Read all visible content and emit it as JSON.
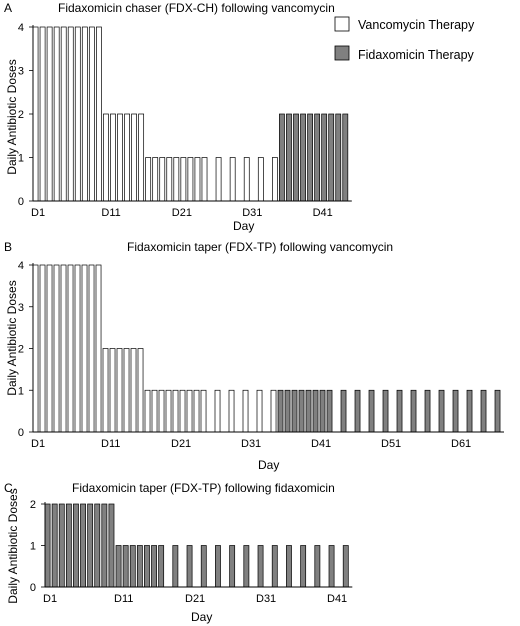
{
  "legend": [
    {
      "label": "Vancomycin Therapy",
      "color": "#ffffff"
    },
    {
      "label": "Fidaxomicin Therapy",
      "color": "#808080"
    }
  ],
  "colors": {
    "vancomycin": "#ffffff",
    "fidaxomicin": "#808080",
    "outline": "#000000"
  },
  "chart_data": [
    {
      "panel": "A",
      "type": "bar",
      "title": "Fidaxomicin chaser (FDX-CH)  following vancomycin",
      "xlabel": "Day",
      "ylabel": "Daily Antibiotic Doses",
      "ylim": [
        0,
        4
      ],
      "yticks": [
        "0",
        "1",
        "2",
        "3",
        "4"
      ],
      "xticks": [
        {
          "label": "D1",
          "day": 1
        },
        {
          "label": "D11",
          "day": 11
        },
        {
          "label": "D21",
          "day": 21
        },
        {
          "label": "D31",
          "day": 31
        },
        {
          "label": "D41",
          "day": 41
        }
      ],
      "series": [
        {
          "name": "Vancomycin Therapy",
          "points": [
            [
              1,
              4
            ],
            [
              2,
              4
            ],
            [
              3,
              4
            ],
            [
              4,
              4
            ],
            [
              5,
              4
            ],
            [
              6,
              4
            ],
            [
              7,
              4
            ],
            [
              8,
              4
            ],
            [
              9,
              4
            ],
            [
              10,
              4
            ],
            [
              11,
              2
            ],
            [
              12,
              2
            ],
            [
              13,
              2
            ],
            [
              14,
              2
            ],
            [
              15,
              2
            ],
            [
              16,
              2
            ],
            [
              17,
              1
            ],
            [
              18,
              1
            ],
            [
              19,
              1
            ],
            [
              20,
              1
            ],
            [
              21,
              1
            ],
            [
              22,
              1
            ],
            [
              23,
              1
            ],
            [
              24,
              1
            ],
            [
              25,
              1
            ],
            [
              27,
              1
            ],
            [
              29,
              1
            ],
            [
              31,
              1
            ],
            [
              33,
              1
            ],
            [
              35,
              1
            ]
          ]
        },
        {
          "name": "Fidaxomicin Therapy",
          "points": [
            [
              36,
              2
            ],
            [
              37,
              2
            ],
            [
              38,
              2
            ],
            [
              39,
              2
            ],
            [
              40,
              2
            ],
            [
              41,
              2
            ],
            [
              42,
              2
            ],
            [
              43,
              2
            ],
            [
              44,
              2
            ],
            [
              45,
              2
            ]
          ]
        }
      ]
    },
    {
      "panel": "B",
      "type": "bar",
      "title": "Fidaxomicin taper (FDX-TP) following vancomycin",
      "xlabel": "Day",
      "ylabel": "Daily Antibiotic Doses",
      "ylim": [
        0,
        4
      ],
      "yticks": [
        "0",
        "1",
        "2",
        "3",
        "4"
      ],
      "xticks": [
        {
          "label": "D1",
          "day": 1
        },
        {
          "label": "D11",
          "day": 11
        },
        {
          "label": "D21",
          "day": 21
        },
        {
          "label": "D31",
          "day": 31
        },
        {
          "label": "D41",
          "day": 41
        },
        {
          "label": "D51",
          "day": 51
        },
        {
          "label": "D61",
          "day": 61
        }
      ],
      "series": [
        {
          "name": "Vancomycin Therapy",
          "points": [
            [
              1,
              4
            ],
            [
              2,
              4
            ],
            [
              3,
              4
            ],
            [
              4,
              4
            ],
            [
              5,
              4
            ],
            [
              6,
              4
            ],
            [
              7,
              4
            ],
            [
              8,
              4
            ],
            [
              9,
              4
            ],
            [
              10,
              4
            ],
            [
              11,
              2
            ],
            [
              12,
              2
            ],
            [
              13,
              2
            ],
            [
              14,
              2
            ],
            [
              15,
              2
            ],
            [
              16,
              2
            ],
            [
              17,
              1
            ],
            [
              18,
              1
            ],
            [
              19,
              1
            ],
            [
              20,
              1
            ],
            [
              21,
              1
            ],
            [
              22,
              1
            ],
            [
              23,
              1
            ],
            [
              24,
              1
            ],
            [
              25,
              1
            ],
            [
              27,
              1
            ],
            [
              29,
              1
            ],
            [
              31,
              1
            ],
            [
              33,
              1
            ],
            [
              35,
              1
            ]
          ]
        },
        {
          "name": "Fidaxomicin Therapy",
          "points": [
            [
              36,
              1
            ],
            [
              37,
              1
            ],
            [
              38,
              1
            ],
            [
              39,
              1
            ],
            [
              40,
              1
            ],
            [
              41,
              1
            ],
            [
              42,
              1
            ],
            [
              43,
              1
            ],
            [
              45,
              1
            ],
            [
              47,
              1
            ],
            [
              49,
              1
            ],
            [
              51,
              1
            ],
            [
              53,
              1
            ],
            [
              55,
              1
            ],
            [
              57,
              1
            ],
            [
              59,
              1
            ],
            [
              61,
              1
            ],
            [
              63,
              1
            ],
            [
              65,
              1
            ],
            [
              67,
              1
            ]
          ]
        }
      ]
    },
    {
      "panel": "C",
      "type": "bar",
      "title": "Fidaxomicin taper (FDX-TP) following fidaxomicin",
      "xlabel": "Day",
      "ylabel": "Daily Antibiotic Doses",
      "ylim": [
        0,
        2
      ],
      "yticks": [
        "0",
        "1",
        "2"
      ],
      "xticks": [
        {
          "label": "D1",
          "day": 1
        },
        {
          "label": "D11",
          "day": 11
        },
        {
          "label": "D21",
          "day": 21
        },
        {
          "label": "D31",
          "day": 31
        },
        {
          "label": "D41",
          "day": 41
        }
      ],
      "series": [
        {
          "name": "Fidaxomicin Therapy",
          "points": [
            [
              1,
              2
            ],
            [
              2,
              2
            ],
            [
              3,
              2
            ],
            [
              4,
              2
            ],
            [
              5,
              2
            ],
            [
              6,
              2
            ],
            [
              7,
              2
            ],
            [
              8,
              2
            ],
            [
              9,
              2
            ],
            [
              10,
              2
            ],
            [
              11,
              1
            ],
            [
              12,
              1
            ],
            [
              13,
              1
            ],
            [
              14,
              1
            ],
            [
              15,
              1
            ],
            [
              16,
              1
            ],
            [
              17,
              1
            ],
            [
              19,
              1
            ],
            [
              21,
              1
            ],
            [
              23,
              1
            ],
            [
              25,
              1
            ],
            [
              27,
              1
            ],
            [
              29,
              1
            ],
            [
              31,
              1
            ],
            [
              33,
              1
            ],
            [
              35,
              1
            ],
            [
              37,
              1
            ],
            [
              39,
              1
            ],
            [
              41,
              1
            ],
            [
              43,
              1
            ]
          ]
        }
      ]
    }
  ]
}
